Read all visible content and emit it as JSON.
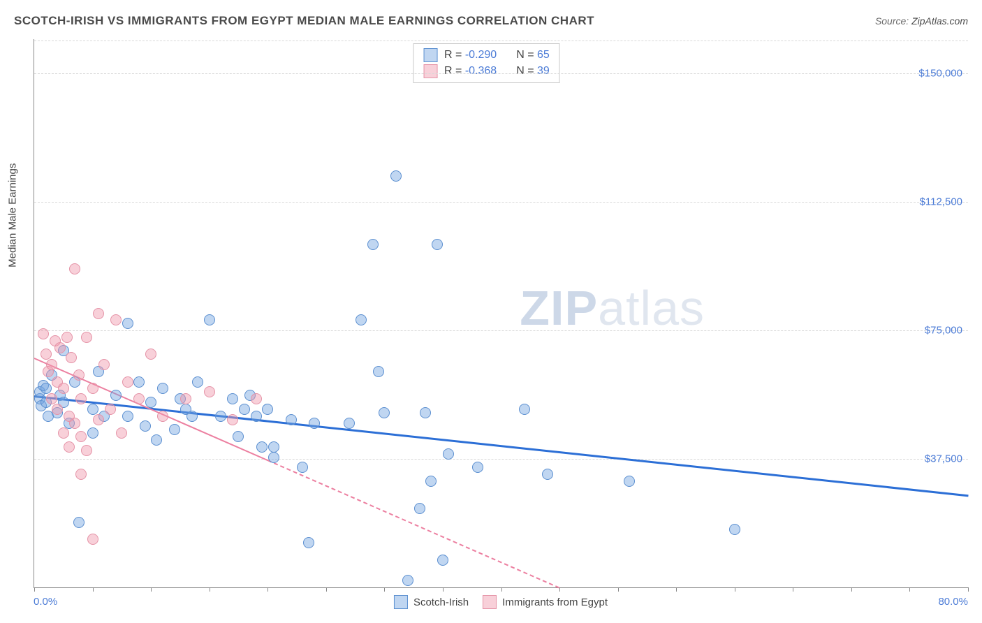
{
  "header": {
    "title": "SCOTCH-IRISH VS IMMIGRANTS FROM EGYPT MEDIAN MALE EARNINGS CORRELATION CHART",
    "source_prefix": "Source: ",
    "source_name": "ZipAtlas.com"
  },
  "watermark": {
    "bold": "ZIP",
    "rest": "atlas"
  },
  "chart": {
    "type": "scatter",
    "background_color": "#ffffff",
    "grid_color": "#d8d8d8",
    "axis_color": "#888888",
    "ylabel": "Median Male Earnings",
    "ylabel_fontsize": 15,
    "title_fontsize": 17,
    "xlim": [
      0,
      80
    ],
    "ylim": [
      0,
      160000
    ],
    "xtick_step": 5,
    "ytick_values": [
      37500,
      75000,
      112500,
      150000
    ],
    "ytick_labels": [
      "$37,500",
      "$75,000",
      "$112,500",
      "$150,000"
    ],
    "xaxis_left_label": "0.0%",
    "xaxis_right_label": "80.0%",
    "label_color": "#4b7bd6",
    "label_fontsize": 15
  },
  "series": [
    {
      "name": "Scotch-Irish",
      "color_fill": "rgba(116,163,224,0.45)",
      "color_stroke": "#5b8fd0",
      "marker_radius": 8,
      "R": "-0.290",
      "N": "65",
      "trend": {
        "color": "#2c6fd6",
        "width": 3,
        "x1": 0,
        "y1": 56000,
        "x2": 80,
        "y2": 27000,
        "solid_until_x": 80,
        "dash": "none"
      },
      "points": [
        [
          0.5,
          55000
        ],
        [
          0.5,
          57000
        ],
        [
          0.6,
          53000
        ],
        [
          0.8,
          59000
        ],
        [
          1.0,
          58000
        ],
        [
          1.0,
          54000
        ],
        [
          1.2,
          50000
        ],
        [
          1.5,
          62000
        ],
        [
          2.0,
          51000
        ],
        [
          2.2,
          56000
        ],
        [
          2.5,
          69000
        ],
        [
          2.5,
          54000
        ],
        [
          3.0,
          48000
        ],
        [
          3.5,
          60000
        ],
        [
          3.8,
          19000
        ],
        [
          5.0,
          52000
        ],
        [
          5.0,
          45000
        ],
        [
          5.5,
          63000
        ],
        [
          6.0,
          50000
        ],
        [
          7.0,
          56000
        ],
        [
          8.0,
          77000
        ],
        [
          8.0,
          50000
        ],
        [
          9.0,
          60000
        ],
        [
          9.5,
          47000
        ],
        [
          10.0,
          54000
        ],
        [
          10.5,
          43000
        ],
        [
          11.0,
          58000
        ],
        [
          12.0,
          46000
        ],
        [
          12.5,
          55000
        ],
        [
          13.0,
          52000
        ],
        [
          13.5,
          50000
        ],
        [
          14.0,
          60000
        ],
        [
          15.0,
          78000
        ],
        [
          16.0,
          50000
        ],
        [
          17.0,
          55000
        ],
        [
          17.5,
          44000
        ],
        [
          18.0,
          52000
        ],
        [
          18.5,
          56000
        ],
        [
          19.0,
          50000
        ],
        [
          19.5,
          41000
        ],
        [
          20.0,
          52000
        ],
        [
          20.5,
          38000
        ],
        [
          20.5,
          41000
        ],
        [
          22.0,
          49000
        ],
        [
          23.0,
          35000
        ],
        [
          23.5,
          13000
        ],
        [
          24.0,
          48000
        ],
        [
          27.0,
          48000
        ],
        [
          28.0,
          78000
        ],
        [
          29.0,
          100000
        ],
        [
          29.5,
          63000
        ],
        [
          30.0,
          51000
        ],
        [
          31.0,
          120000
        ],
        [
          32.0,
          2000
        ],
        [
          33.0,
          23000
        ],
        [
          33.5,
          51000
        ],
        [
          34.0,
          31000
        ],
        [
          34.5,
          100000
        ],
        [
          35.0,
          8000
        ],
        [
          35.5,
          39000
        ],
        [
          38.0,
          35000
        ],
        [
          42.0,
          52000
        ],
        [
          44.0,
          33000
        ],
        [
          51.0,
          31000
        ],
        [
          60.0,
          17000
        ]
      ]
    },
    {
      "name": "Immigrants from Egypt",
      "color_fill": "rgba(240,150,170,0.45)",
      "color_stroke": "#e593a7",
      "marker_radius": 8,
      "R": "-0.368",
      "N": "39",
      "trend": {
        "color": "#ec7fa0",
        "width": 2,
        "x1": 0,
        "y1": 67000,
        "x2": 45,
        "y2": 0,
        "solid_until_x": 20,
        "dash": "6 6"
      },
      "points": [
        [
          0.8,
          74000
        ],
        [
          1.0,
          68000
        ],
        [
          1.2,
          63000
        ],
        [
          1.5,
          65000
        ],
        [
          1.5,
          55000
        ],
        [
          1.8,
          72000
        ],
        [
          2.0,
          60000
        ],
        [
          2.0,
          52000
        ],
        [
          2.2,
          70000
        ],
        [
          2.5,
          58000
        ],
        [
          2.5,
          45000
        ],
        [
          2.8,
          73000
        ],
        [
          3.0,
          50000
        ],
        [
          3.0,
          41000
        ],
        [
          3.2,
          67000
        ],
        [
          3.5,
          48000
        ],
        [
          3.5,
          93000
        ],
        [
          3.8,
          62000
        ],
        [
          4.0,
          55000
        ],
        [
          4.0,
          44000
        ],
        [
          4.0,
          33000
        ],
        [
          4.5,
          73000
        ],
        [
          4.5,
          40000
        ],
        [
          5.0,
          58000
        ],
        [
          5.0,
          14000
        ],
        [
          5.5,
          80000
        ],
        [
          5.5,
          49000
        ],
        [
          6.0,
          65000
        ],
        [
          6.5,
          52000
        ],
        [
          7.0,
          78000
        ],
        [
          7.5,
          45000
        ],
        [
          8.0,
          60000
        ],
        [
          9.0,
          55000
        ],
        [
          10.0,
          68000
        ],
        [
          11.0,
          50000
        ],
        [
          13.0,
          55000
        ],
        [
          15.0,
          57000
        ],
        [
          17.0,
          49000
        ],
        [
          19.0,
          55000
        ]
      ]
    }
  ],
  "legend_top": {
    "R_label": "R = ",
    "N_label": "N = "
  },
  "legend_bottom": {
    "items": [
      "Scotch-Irish",
      "Immigrants from Egypt"
    ]
  }
}
